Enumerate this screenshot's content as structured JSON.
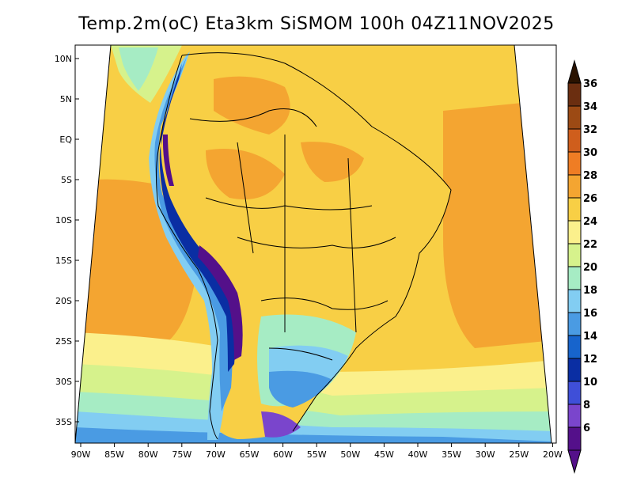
{
  "title": "Temp.2m(oC) Eta3km SiSMOM 100h 04Z11NOV2025",
  "y_axis_labels": [
    "10N",
    "5N",
    "EQ",
    "5S",
    "10S",
    "15S",
    "20S",
    "25S",
    "30S",
    "35S"
  ],
  "x_axis_labels": [
    "90W",
    "85W",
    "80W",
    "75W",
    "70W",
    "65W",
    "60W",
    "55W",
    "50W",
    "45W",
    "40W",
    "35W",
    "30W",
    "25W",
    "20W"
  ],
  "colorbar": {
    "labels": [
      "36",
      "34",
      "32",
      "30",
      "28",
      "26",
      "24",
      "22",
      "20",
      "18",
      "16",
      "14",
      "12",
      "10",
      "8",
      "6"
    ],
    "colors": [
      "#2a1200",
      "#6b2e10",
      "#9c4a14",
      "#cf5e1c",
      "#ef7d24",
      "#f4a531",
      "#f8cf45",
      "#fbf08c",
      "#d6f28c",
      "#a6ecc4",
      "#82cdf2",
      "#4a9be3",
      "#1764cc",
      "#0a2ea3",
      "#3f4fd8",
      "#7a45cc",
      "#54108a"
    ],
    "top_arrow_color": "#2a1200",
    "bottom_arrow_color": "#54108a"
  }
}
